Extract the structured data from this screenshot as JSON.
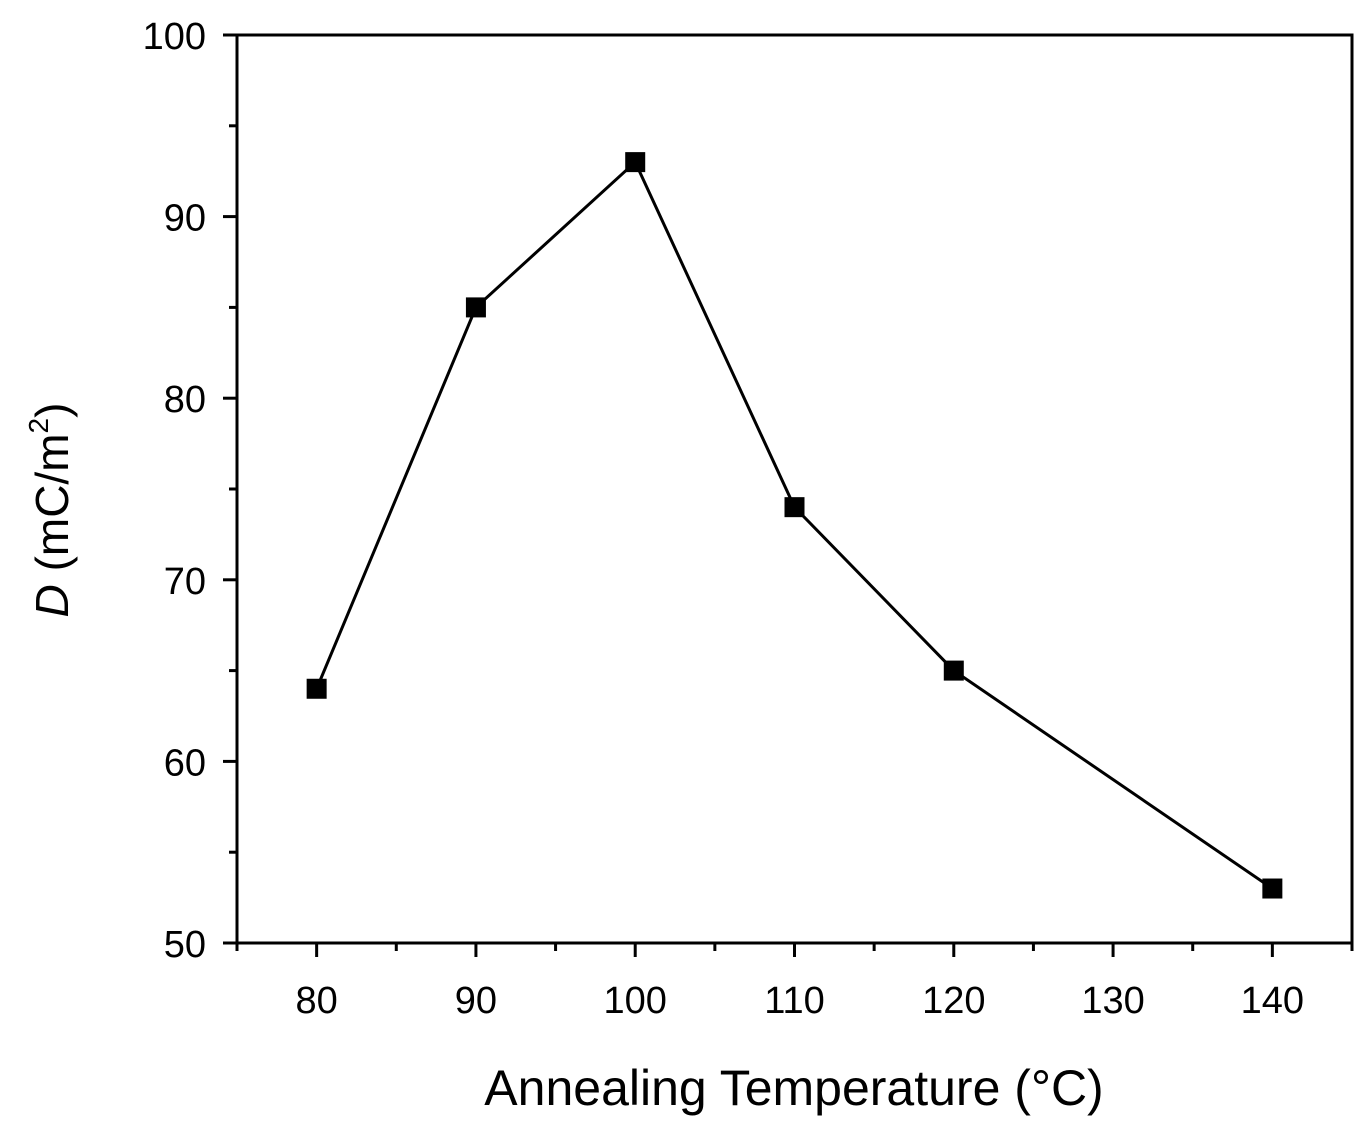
{
  "chart_data": {
    "type": "line",
    "title": "",
    "xlabel": "Annealing Temperature",
    "xlabel_unit": "(°C)",
    "ylabel_var": "D",
    "ylabel_unit": "(mC/m",
    "ylabel_sup": "2",
    "ylabel_close": ")",
    "xlim": [
      75,
      145
    ],
    "ylim": [
      50,
      100
    ],
    "x_ticks": [
      80,
      90,
      100,
      110,
      120,
      130,
      140
    ],
    "x_minor_ticks": [
      75,
      85,
      95,
      105,
      115,
      125,
      135,
      145
    ],
    "y_ticks": [
      50,
      60,
      70,
      80,
      90,
      100
    ],
    "y_minor_ticks": [
      55,
      65,
      75,
      85,
      95
    ],
    "grid": false,
    "marker": "square",
    "series": [
      {
        "name": "D",
        "x": [
          80,
          90,
          100,
          110,
          120,
          140
        ],
        "y": [
          64,
          85,
          93,
          74,
          65,
          53
        ]
      }
    ]
  }
}
